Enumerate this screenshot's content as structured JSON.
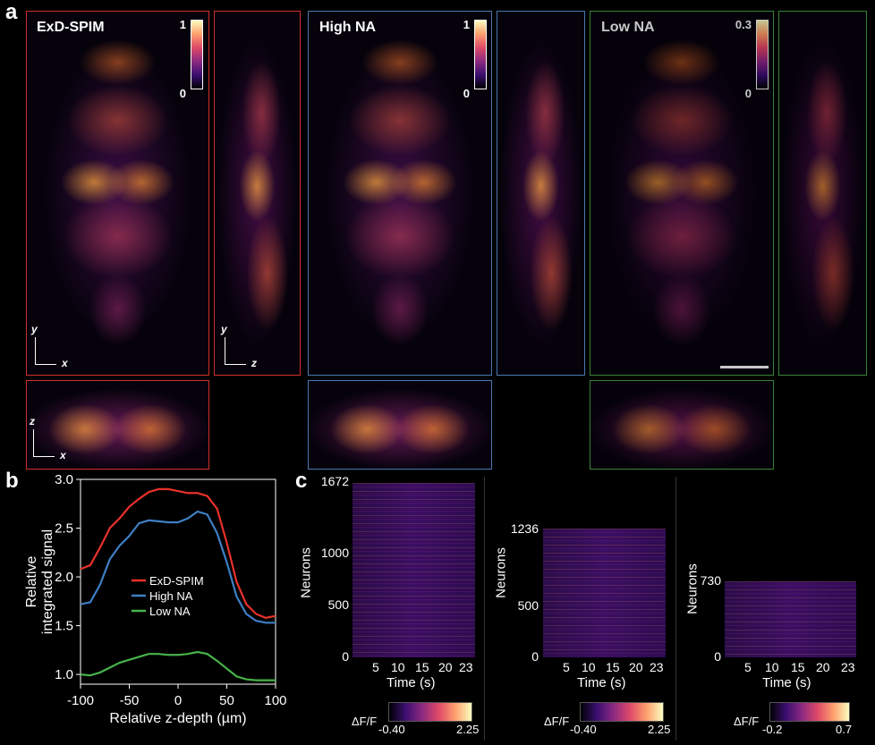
{
  "panel_a": {
    "letter": "a",
    "frames": [
      {
        "label": "ExD-SPIM",
        "cbar_max": "1",
        "cbar_min": "0"
      },
      {
        "label": "High NA",
        "cbar_max": "1",
        "cbar_min": "0"
      },
      {
        "label": "Low NA",
        "cbar_max": "0.3",
        "cbar_min": "0"
      }
    ],
    "axes": {
      "y": "y",
      "x": "x",
      "z": "z"
    }
  },
  "panel_b": {
    "letter": "b",
    "ylabel_1": "Relative",
    "ylabel_2": "integrated signal",
    "xlabel": "Relative z-depth (µm)",
    "yticks": [
      "3.0",
      "2.5",
      "2.0",
      "1.5",
      "1.0"
    ],
    "xticks": [
      "-100",
      "-50",
      "0",
      "50",
      "100"
    ],
    "legend": [
      "ExD-SPIM",
      "High NA",
      "Low NA"
    ]
  },
  "chart_data": {
    "type": "line",
    "xlabel": "Relative z-depth (µm)",
    "ylabel": "Relative integrated signal",
    "xlim": [
      -100,
      100
    ],
    "ylim": [
      0.9,
      3.0
    ],
    "legend_position": "center",
    "x": [
      -100,
      -90,
      -80,
      -70,
      -60,
      -50,
      -40,
      -30,
      -20,
      -10,
      0,
      10,
      20,
      30,
      40,
      50,
      60,
      70,
      80,
      90,
      100
    ],
    "series": [
      {
        "name": "ExD-SPIM",
        "color": "#e8312a",
        "values": [
          2.08,
          2.12,
          2.3,
          2.5,
          2.6,
          2.72,
          2.8,
          2.87,
          2.9,
          2.9,
          2.88,
          2.86,
          2.86,
          2.83,
          2.7,
          2.35,
          1.95,
          1.72,
          1.62,
          1.58,
          1.6
        ]
      },
      {
        "name": "High NA",
        "color": "#3f7fc4",
        "values": [
          1.72,
          1.74,
          1.92,
          2.18,
          2.32,
          2.42,
          2.55,
          2.58,
          2.57,
          2.56,
          2.56,
          2.6,
          2.67,
          2.64,
          2.45,
          2.15,
          1.8,
          1.62,
          1.55,
          1.53,
          1.53
        ]
      },
      {
        "name": "Low NA",
        "color": "#46b34a",
        "values": [
          1.0,
          0.99,
          1.02,
          1.07,
          1.12,
          1.15,
          1.18,
          1.21,
          1.21,
          1.2,
          1.2,
          1.21,
          1.23,
          1.21,
          1.14,
          1.06,
          0.98,
          0.95,
          0.94,
          0.94,
          0.94
        ]
      }
    ]
  },
  "panel_c": {
    "letter": "c",
    "ylabel": "Neurons",
    "xlabel": "Time (s)",
    "xticks": [
      "5",
      "10",
      "15",
      "20",
      "23"
    ],
    "cbar_label": "ΔF/F",
    "heatmaps": [
      {
        "yticks": [
          "1672",
          "1000",
          "500",
          "0"
        ],
        "cmin": "-0.40",
        "cmax": "2.25"
      },
      {
        "yticks": [
          "1236",
          "500",
          "0"
        ],
        "cmin": "-0.40",
        "cmax": "2.25"
      },
      {
        "yticks": [
          "730",
          "0"
        ],
        "cmin": "-0.2",
        "cmax": "0.7"
      }
    ]
  }
}
